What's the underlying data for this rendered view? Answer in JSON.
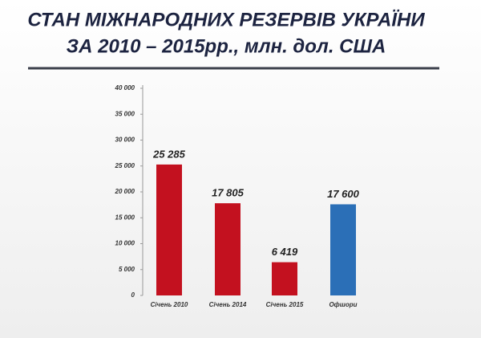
{
  "chart_data": {
    "type": "bar",
    "title": [
      "СТАН МІЖНАРОДНИХ РЕЗЕРВІВ УКРАЇНИ",
      "ЗА 2010 – 2015рр., млн. дол. США"
    ],
    "categories": [
      "Січень 2010",
      "Січень 2014",
      "Січень 2015",
      "Офшори"
    ],
    "values": [
      25285,
      17805,
      6419,
      17600
    ],
    "value_labels": [
      "25 285",
      "17 805",
      "6 419",
      "17 600"
    ],
    "colors": [
      "#c3111f",
      "#c3111f",
      "#c3111f",
      "#2b6fb7"
    ],
    "ylim": [
      0,
      40000
    ],
    "yticks": [
      0,
      {
        "value": 5000,
        "label": "5 000"
      },
      {
        "value": 10000,
        "label": "10 000"
      },
      {
        "value": 15000,
        "label": "15 000"
      },
      {
        "value": 20000,
        "label": "20 000"
      },
      {
        "value": 25000,
        "label": "25 000"
      },
      {
        "value": 30000,
        "label": "30 000"
      },
      {
        "value": 35000,
        "label": "35 000"
      },
      {
        "value": 40000,
        "label": "40 000"
      }
    ]
  }
}
